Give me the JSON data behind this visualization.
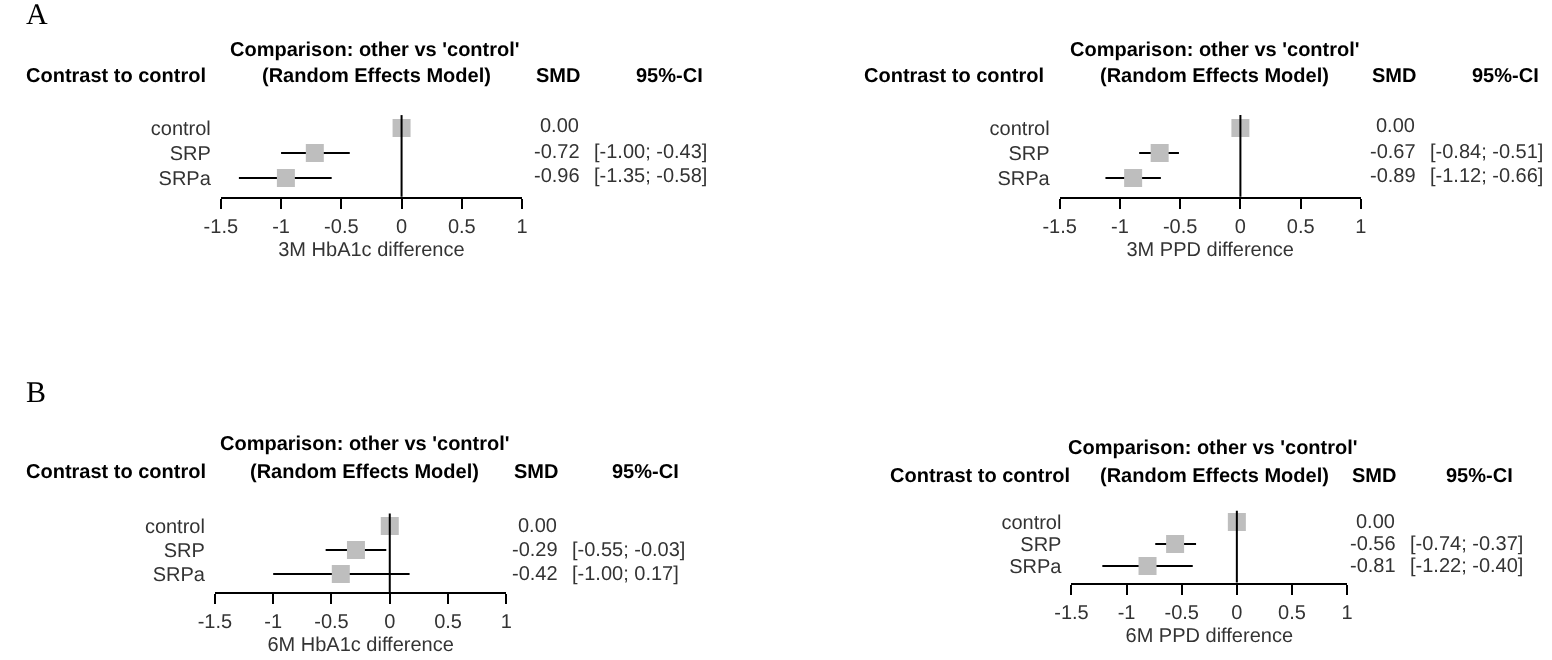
{
  "chart_data": [
    {
      "type": "scatter",
      "title": "Comparison: other vs 'control'\n(Random Effects Model)",
      "ylabel": "Contrast to control",
      "xlabel": "3M HbA1c difference",
      "orientation": "horizontal",
      "categories": [
        "control",
        "SRP",
        "SRPa"
      ],
      "values": [
        0,
        -0.72,
        -0.96
      ],
      "value_labels": [
        "0.00",
        "-0.72",
        "-0.96"
      ],
      "errors": [
        null,
        [
          -1.0,
          -0.43
        ],
        [
          -1.35,
          -0.58
        ]
      ],
      "color": "#bebebe",
      "marker": "square",
      "xlim": [
        -1.5,
        1
      ],
      "xticks": [
        -1.5,
        -1,
        -0.5,
        0,
        0.5,
        1
      ],
      "ref_lines": [
        {
          "axis": "x",
          "value": 0
        }
      ],
      "annotations": [
        "[-1.00; -0.43]",
        "[-1.35; -0.58]",
        "A",
        "SMD",
        "95%-CI"
      ]
    },
    {
      "type": "scatter",
      "title": "Comparison: other vs 'control'\n(Random Effects Model)",
      "ylabel": "Contrast to control",
      "xlabel": "3M PPD difference",
      "orientation": "horizontal",
      "categories": [
        "control",
        "SRP",
        "SRPa"
      ],
      "values": [
        0,
        -0.67,
        -0.89
      ],
      "value_labels": [
        "0.00",
        "-0.67",
        "-0.89"
      ],
      "errors": [
        null,
        [
          -0.84,
          -0.51
        ],
        [
          -1.12,
          -0.66
        ]
      ],
      "color": "#bebebe",
      "marker": "square",
      "xlim": [
        -1.5,
        1
      ],
      "xticks": [
        -1.5,
        -1,
        -0.5,
        0,
        0.5,
        1
      ],
      "ref_lines": [
        {
          "axis": "x",
          "value": 0
        }
      ],
      "annotations": [
        "[-0.84; -0.51]",
        "[-1.12; -0.66]",
        "SMD",
        "95%-CI"
      ]
    },
    {
      "type": "scatter",
      "title": "Comparison: other vs 'control'\n(Random Effects Model)",
      "ylabel": "Contrast to control",
      "xlabel": "6M HbA1c difference",
      "orientation": "horizontal",
      "categories": [
        "control",
        "SRP",
        "SRPa"
      ],
      "values": [
        0,
        -0.29,
        -0.42
      ],
      "value_labels": [
        "0.00",
        "-0.29",
        "-0.42"
      ],
      "errors": [
        null,
        [
          -0.55,
          -0.03
        ],
        [
          -1.0,
          0.17
        ]
      ],
      "color": "#bebebe",
      "marker": "square",
      "xlim": [
        -1.5,
        1
      ],
      "xticks": [
        -1.5,
        -1,
        -0.5,
        0,
        0.5,
        1
      ],
      "ref_lines": [
        {
          "axis": "x",
          "value": 0
        }
      ],
      "annotations": [
        "[-0.55; -0.03]",
        "[-1.00; 0.17]",
        "B",
        "SMD",
        "95%-CI"
      ]
    },
    {
      "type": "scatter",
      "title": "Comparison: other vs 'control'\n(Random Effects Model)",
      "ylabel": "Contrast to control",
      "xlabel": "6M PPD difference",
      "orientation": "horizontal",
      "categories": [
        "control",
        "SRP",
        "SRPa"
      ],
      "values": [
        0,
        -0.56,
        -0.81
      ],
      "value_labels": [
        "0.00",
        "-0.56",
        "-0.81"
      ],
      "errors": [
        null,
        [
          -0.74,
          -0.37
        ],
        [
          -1.22,
          -0.4
        ]
      ],
      "color": "#bebebe",
      "marker": "square",
      "xlim": [
        -1.5,
        1
      ],
      "xticks": [
        -1.5,
        -1,
        -0.5,
        0,
        0.5,
        1
      ],
      "ref_lines": [
        {
          "axis": "x",
          "value": 0
        }
      ],
      "annotations": [
        "[-0.74; -0.37]",
        "[-1.22; -0.40]",
        "SMD",
        "95%-CI"
      ]
    }
  ]
}
